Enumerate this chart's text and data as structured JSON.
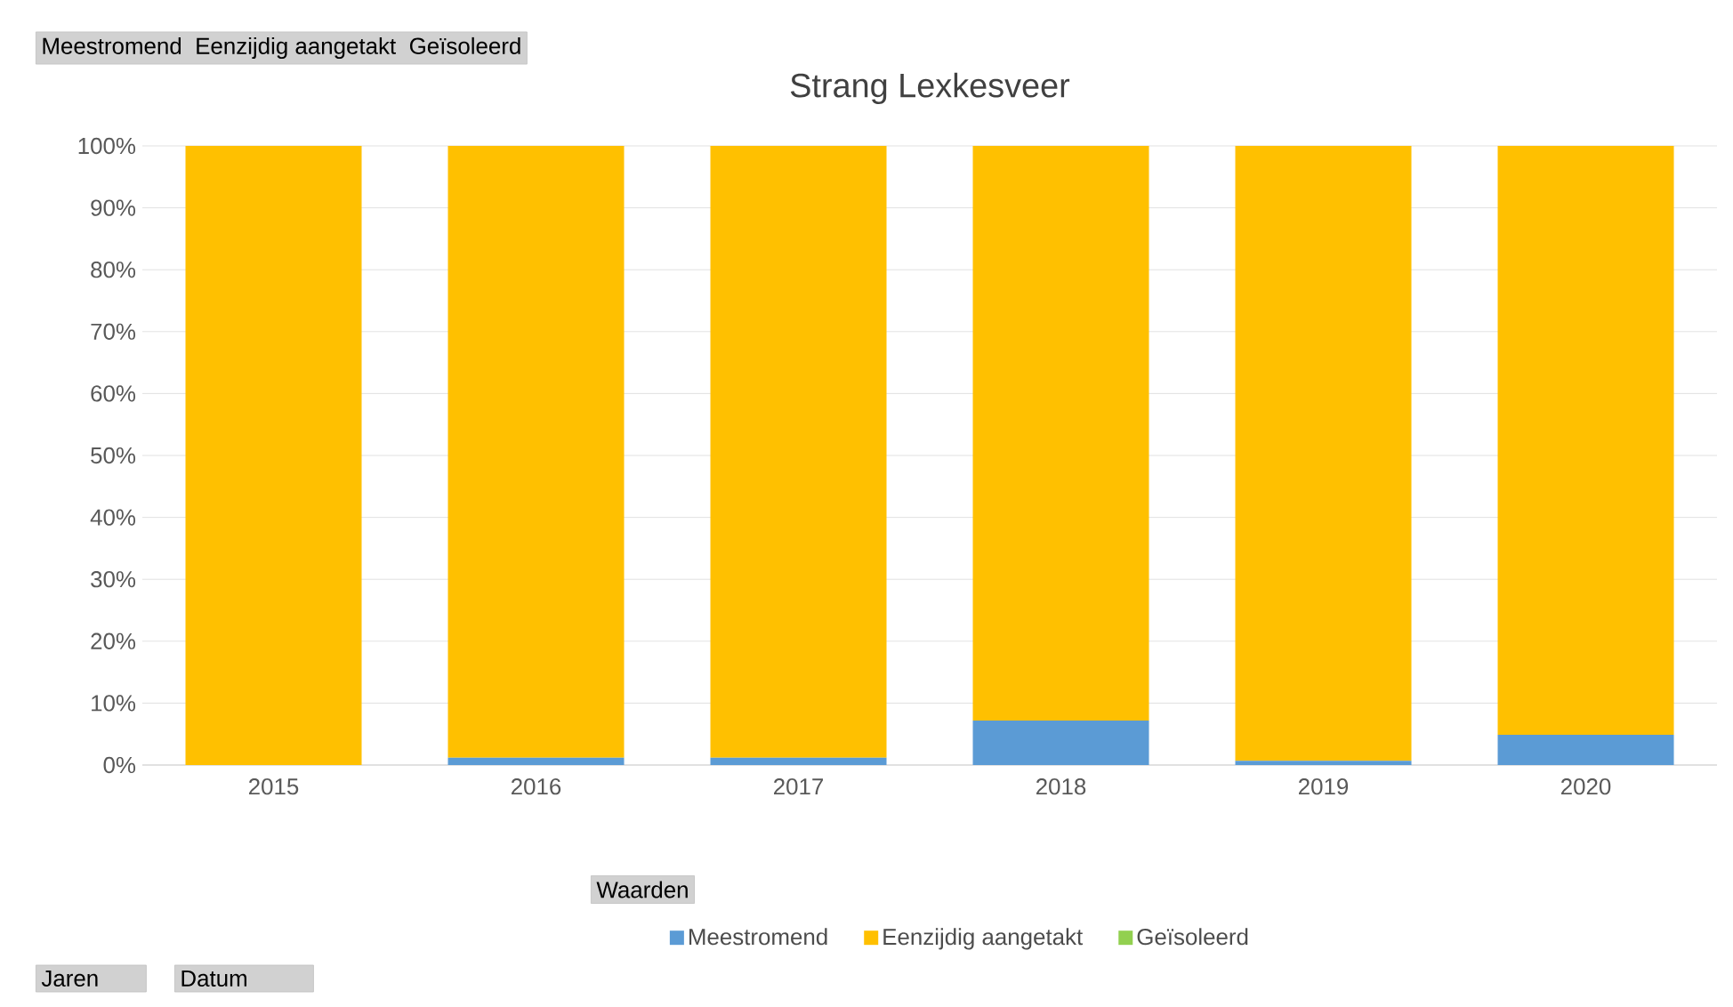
{
  "chart_data": {
    "type": "bar",
    "title": "Strang Lexkesveer",
    "stacked": true,
    "grid": "y",
    "legend": "bottom",
    "categories": [
      "2015",
      "2016",
      "2017",
      "2018",
      "2019",
      "2020"
    ],
    "series": [
      {
        "name": "Meestromend",
        "color": "#5b9bd5",
        "values": [
          0,
          1.2,
          1.2,
          7.2,
          0.7,
          4.9
        ]
      },
      {
        "name": "Eenzijdig aangetakt",
        "color": "#ffc000",
        "values": [
          100,
          98.8,
          98.8,
          92.8,
          99.3,
          95.1
        ]
      },
      {
        "name": "Geïsoleerd",
        "color": "#92d050",
        "values": [
          0,
          0,
          0,
          0,
          0,
          0
        ]
      }
    ],
    "ylim": [
      0,
      100
    ],
    "yticks": [
      {
        "value": 0,
        "label": "0%"
      },
      {
        "value": 10,
        "label": "10%"
      },
      {
        "value": 20,
        "label": "20%"
      },
      {
        "value": 30,
        "label": "30%"
      },
      {
        "value": 40,
        "label": "40%"
      },
      {
        "value": 50,
        "label": "50%"
      },
      {
        "value": 60,
        "label": "60%"
      },
      {
        "value": 70,
        "label": "70%"
      },
      {
        "value": 80,
        "label": "80%"
      },
      {
        "value": 90,
        "label": "90%"
      },
      {
        "value": 100,
        "label": "100%"
      }
    ],
    "annotations": [
      "Meestromend",
      "Eenzijdig aangetakt",
      "Geïsoleerd",
      "Waarden",
      "Jaren",
      "Datum"
    ]
  }
}
